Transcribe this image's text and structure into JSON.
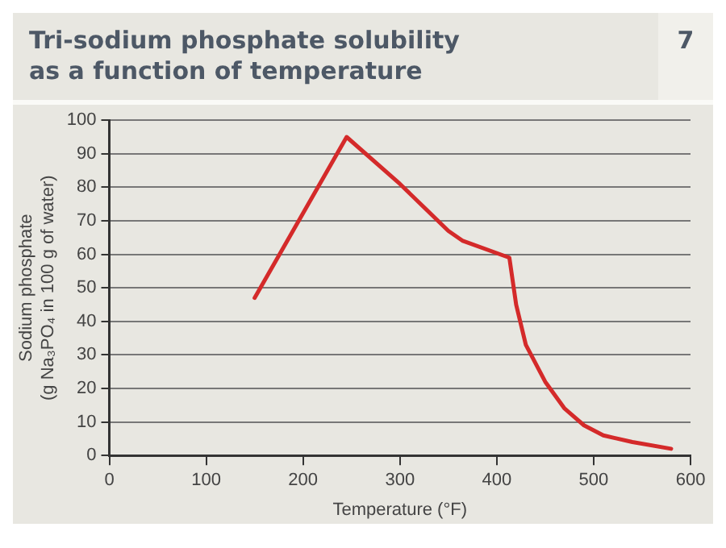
{
  "chart_data": {
    "type": "line",
    "title": "Tri-sodium phosphate solubility\nas a function of temperature",
    "annotations": [
      "7"
    ],
    "xlabel": "Temperature (°F)",
    "ylabel": "Sodium phosphate\n(g Na₃PO₄ in 100 g of water)",
    "series": [
      {
        "color": "#d42a2a",
        "x": [
          150,
          245,
          300,
          350,
          365,
          413,
          420,
          430,
          450,
          470,
          490,
          510,
          540,
          580
        ],
        "values": [
          47,
          95,
          81,
          67,
          64,
          59,
          45,
          33,
          22,
          14,
          9,
          6,
          4,
          2
        ]
      }
    ],
    "xlim": [
      0,
      600
    ],
    "xticks": [
      0,
      100,
      200,
      300,
      400,
      500,
      600
    ],
    "ylim": [
      0,
      100
    ],
    "yticks": [
      0,
      10,
      20,
      30,
      40,
      50,
      60,
      70,
      80,
      90,
      100
    ],
    "grid": "y",
    "legend": false,
    "marker": "none",
    "line_style": "solid"
  }
}
